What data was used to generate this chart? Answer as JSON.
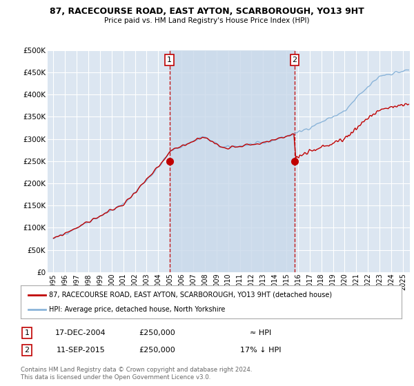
{
  "title": "87, RACECOURSE ROAD, EAST AYTON, SCARBOROUGH, YO13 9HT",
  "subtitle": "Price paid vs. HM Land Registry's House Price Index (HPI)",
  "ytick_values": [
    0,
    50000,
    100000,
    150000,
    200000,
    250000,
    300000,
    350000,
    400000,
    450000,
    500000
  ],
  "ylim": [
    0,
    500000
  ],
  "sale1_date": 2004.96,
  "sale1_price": 250000,
  "sale1_label": "1",
  "sale2_date": 2015.71,
  "sale2_price": 250000,
  "sale2_label": "2",
  "legend_line1": "87, RACECOURSE ROAD, EAST AYTON, SCARBOROUGH, YO13 9HT (detached house)",
  "legend_line2": "HPI: Average price, detached house, North Yorkshire",
  "table_row1": [
    "1",
    "17-DEC-2004",
    "£250,000",
    "≈ HPI"
  ],
  "table_row2": [
    "2",
    "11-SEP-2015",
    "£250,000",
    "17% ↓ HPI"
  ],
  "footer": "Contains HM Land Registry data © Crown copyright and database right 2024.\nThis data is licensed under the Open Government Licence v3.0.",
  "hpi_color": "#8ab4d9",
  "price_color": "#c00000",
  "vline_color": "#c00000",
  "background_color": "#ffffff",
  "plot_bg_color": "#dce6f1",
  "grid_color": "#ffffff",
  "shade_color": "#c9d9ea",
  "xtick_years": [
    1995,
    1996,
    1997,
    1998,
    1999,
    2000,
    2001,
    2002,
    2003,
    2004,
    2005,
    2006,
    2007,
    2008,
    2009,
    2010,
    2011,
    2012,
    2013,
    2014,
    2015,
    2016,
    2017,
    2018,
    2019,
    2020,
    2021,
    2022,
    2023,
    2024,
    2025
  ]
}
